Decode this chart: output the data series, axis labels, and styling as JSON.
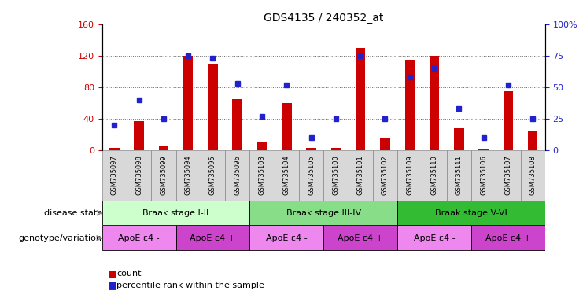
{
  "title": "GDS4135 / 240352_at",
  "samples": [
    "GSM735097",
    "GSM735098",
    "GSM735099",
    "GSM735094",
    "GSM735095",
    "GSM735096",
    "GSM735103",
    "GSM735104",
    "GSM735105",
    "GSM735100",
    "GSM735101",
    "GSM735102",
    "GSM735109",
    "GSM735110",
    "GSM735111",
    "GSM735106",
    "GSM735107",
    "GSM735108"
  ],
  "counts": [
    3,
    37,
    5,
    120,
    110,
    65,
    10,
    60,
    3,
    3,
    130,
    15,
    115,
    120,
    28,
    2,
    75,
    25
  ],
  "percentile_ranks": [
    20,
    40,
    25,
    75,
    73,
    53,
    27,
    52,
    10,
    25,
    75,
    25,
    58,
    65,
    33,
    10,
    52,
    25
  ],
  "ylim_left": [
    0,
    160
  ],
  "ylim_right": [
    0,
    100
  ],
  "yticks_left": [
    0,
    40,
    80,
    120,
    160
  ],
  "yticks_right": [
    0,
    25,
    50,
    75,
    100
  ],
  "ytick_labels_right": [
    "0",
    "25",
    "50",
    "75",
    "100%"
  ],
  "bar_color": "#cc0000",
  "dot_color": "#2222cc",
  "disease_states": [
    {
      "label": "Braak stage I-II",
      "start": 0,
      "end": 6,
      "color": "#ccffcc"
    },
    {
      "label": "Braak stage III-IV",
      "start": 6,
      "end": 12,
      "color": "#88dd88"
    },
    {
      "label": "Braak stage V-VI",
      "start": 12,
      "end": 18,
      "color": "#33bb33"
    }
  ],
  "genotype_groups": [
    {
      "label": "ApoE ε4 -",
      "start": 0,
      "end": 3,
      "color": "#ee88ee"
    },
    {
      "label": "ApoE ε4 +",
      "start": 3,
      "end": 6,
      "color": "#cc44cc"
    },
    {
      "label": "ApoE ε4 -",
      "start": 6,
      "end": 9,
      "color": "#ee88ee"
    },
    {
      "label": "ApoE ε4 +",
      "start": 9,
      "end": 12,
      "color": "#cc44cc"
    },
    {
      "label": "ApoE ε4 -",
      "start": 12,
      "end": 15,
      "color": "#ee88ee"
    },
    {
      "label": "ApoE ε4 +",
      "start": 15,
      "end": 18,
      "color": "#cc44cc"
    }
  ],
  "legend_count_label": "count",
  "legend_percentile_label": "percentile rank within the sample",
  "disease_state_label": "disease state",
  "genotype_label": "genotype/variation",
  "grid_color": "#666666",
  "sample_bg_color": "#d8d8d8",
  "sample_border_color": "#888888"
}
